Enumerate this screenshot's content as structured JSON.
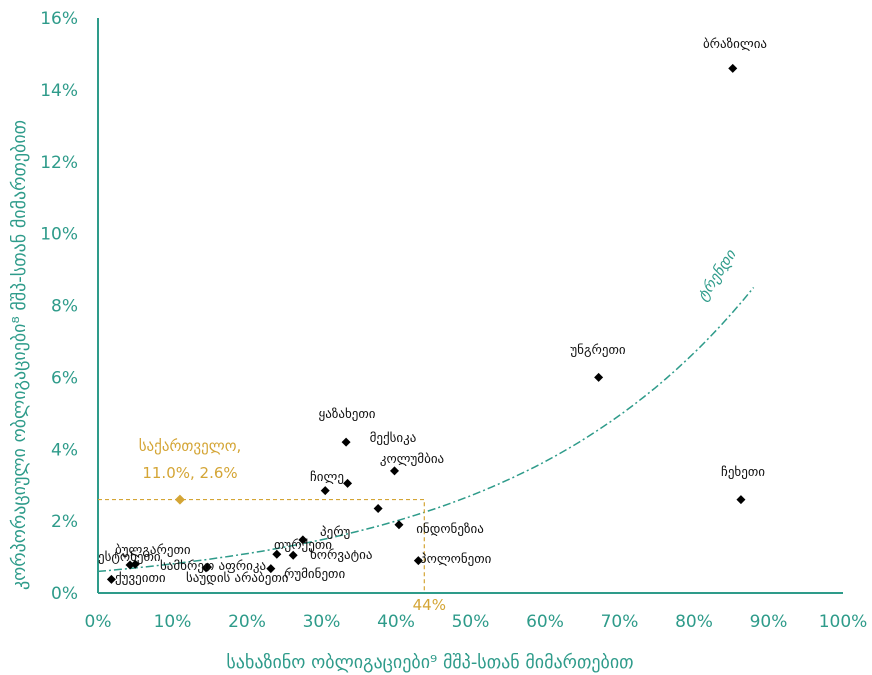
{
  "chart_data": {
    "type": "scatter",
    "xlabel": "სახაზინო ობლიგაციები⁹ მშპ-სთან მიმართებით",
    "ylabel": "კორპორაციული ობლიგაციები⁸ მშპ-სთან მიმართებით",
    "xlim": [
      0,
      100
    ],
    "ylim": [
      0,
      16
    ],
    "x_ticks": [
      "0%",
      "10%",
      "20%",
      "30%",
      "40%",
      "50%",
      "60%",
      "70%",
      "80%",
      "90%",
      "100%"
    ],
    "y_ticks": [
      "0%",
      "2%",
      "4%",
      "6%",
      "8%",
      "10%",
      "12%",
      "14%",
      "16%"
    ],
    "colors": {
      "axis": "#2e9b8a",
      "points": "#000000",
      "highlight": "#d4a535",
      "trend": "#2e9b8a"
    },
    "points": [
      {
        "label": "ბრაზილია",
        "x": 85.2,
        "y": 14.6
      },
      {
        "label": "უნგრეთი",
        "x": 67.2,
        "y": 6.0
      },
      {
        "label": "ჩეხეთი",
        "x": 86.3,
        "y": 2.6
      },
      {
        "label": "ყაზახეთი",
        "x": 33.3,
        "y": 4.2
      },
      {
        "label": "მექსიკა",
        "x": 33.5,
        "y": 3.05
      },
      {
        "label": "კოლუმბია",
        "x": 39.8,
        "y": 3.4
      },
      {
        "label": "ჩილე",
        "x": 30.5,
        "y": 2.85
      },
      {
        "label": "",
        "x": 37.6,
        "y": 2.35
      },
      {
        "label": "ინდონეზია",
        "x": 40.4,
        "y": 1.9
      },
      {
        "label": "პერუ",
        "x": 27.5,
        "y": 1.48
      },
      {
        "label": "თურქეთი",
        "x": 24.0,
        "y": 1.08
      },
      {
        "label": "ხორვატია",
        "x": 26.2,
        "y": 1.05
      },
      {
        "label": "რუმინეთი",
        "x": 23.2,
        "y": 0.68
      },
      {
        "label": "პოლონეთი",
        "x": 43.0,
        "y": 0.9
      },
      {
        "label": "ბულგარეთი",
        "x": 5.0,
        "y": 0.8
      },
      {
        "label": "ესტონეთი",
        "x": 4.3,
        "y": 0.78
      },
      {
        "label": "ქუვეითი",
        "x": 1.8,
        "y": 0.38
      },
      {
        "label": "სამხრეთ აფრიკა",
        "x": 14.7,
        "y": 0.72
      },
      {
        "label": "საუდის არაბეთი",
        "x": 14.5,
        "y": 0.7
      }
    ],
    "highlight": {
      "label_line1": "საქართველო,",
      "label_line2": "11.0%, 2.6%",
      "x": 11.0,
      "y": 2.6,
      "ref_x_label": "44%",
      "ref_x": 43.8
    },
    "trendline": {
      "label": "ტრენდი",
      "style": "dash-dot",
      "x_start": 0,
      "x_end": 88,
      "y_start": 0.6,
      "y_end": 8.5
    }
  }
}
